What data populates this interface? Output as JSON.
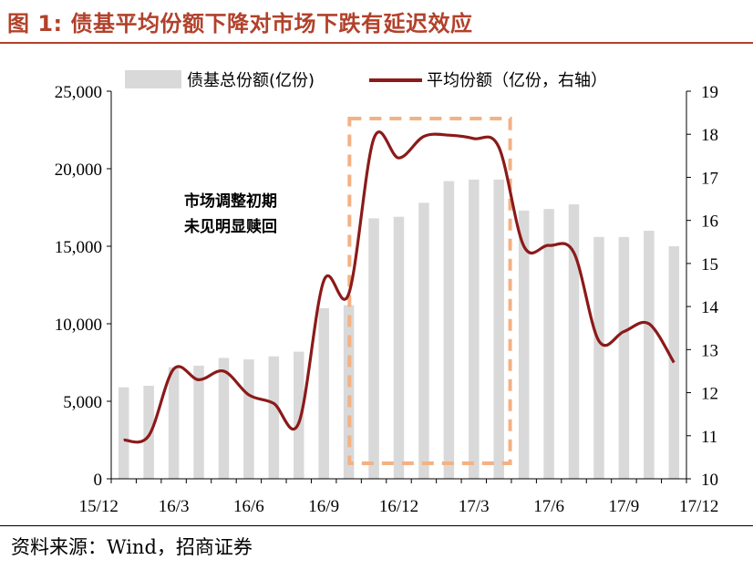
{
  "title": "图 1:  债基平均份额下降对市场下跌有延迟效应",
  "source": "资料来源：Wind，招商证券",
  "colors": {
    "title": "#b2412b",
    "bar": "#d9d9d9",
    "line": "#8b1a1a",
    "highlight_box": "#f4b183"
  },
  "chart_data": {
    "type": "bar+line",
    "x_tick_labels": [
      "15/12",
      "16/3",
      "16/6",
      "16/9",
      "16/12",
      "17/3",
      "17/6",
      "17/9",
      "17/12"
    ],
    "annotation": [
      "市场调整初期",
      "未见明显赎回"
    ],
    "left_axis": {
      "ylim": [
        0,
        25000
      ],
      "ticks": [
        "0",
        "5,000",
        "10,000",
        "15,000",
        "20,000",
        "25,000"
      ]
    },
    "right_axis": {
      "ylim": [
        10,
        19
      ],
      "ticks": [
        "10",
        "11",
        "12",
        "13",
        "14",
        "15",
        "16",
        "17",
        "18",
        "19"
      ]
    },
    "series": [
      {
        "name": "债基总份额(亿份)",
        "type": "bar",
        "axis": "left",
        "values": [
          5900,
          6000,
          7200,
          7300,
          7800,
          7700,
          7900,
          8200,
          11000,
          11200,
          16800,
          16900,
          17800,
          19200,
          19300,
          19300,
          17300,
          17400,
          17700,
          15600,
          15600,
          16000,
          15000
        ]
      },
      {
        "name": "平均份额（亿份，右轴）",
        "type": "line",
        "axis": "right",
        "values": [
          10.9,
          11.0,
          12.55,
          12.3,
          12.5,
          11.95,
          11.75,
          11.3,
          14.6,
          14.3,
          17.9,
          17.45,
          17.95,
          17.98,
          17.9,
          17.7,
          15.4,
          15.42,
          15.25,
          13.2,
          13.42,
          13.6,
          12.7
        ]
      }
    ],
    "highlight_period": "16/9 – 17/6"
  }
}
